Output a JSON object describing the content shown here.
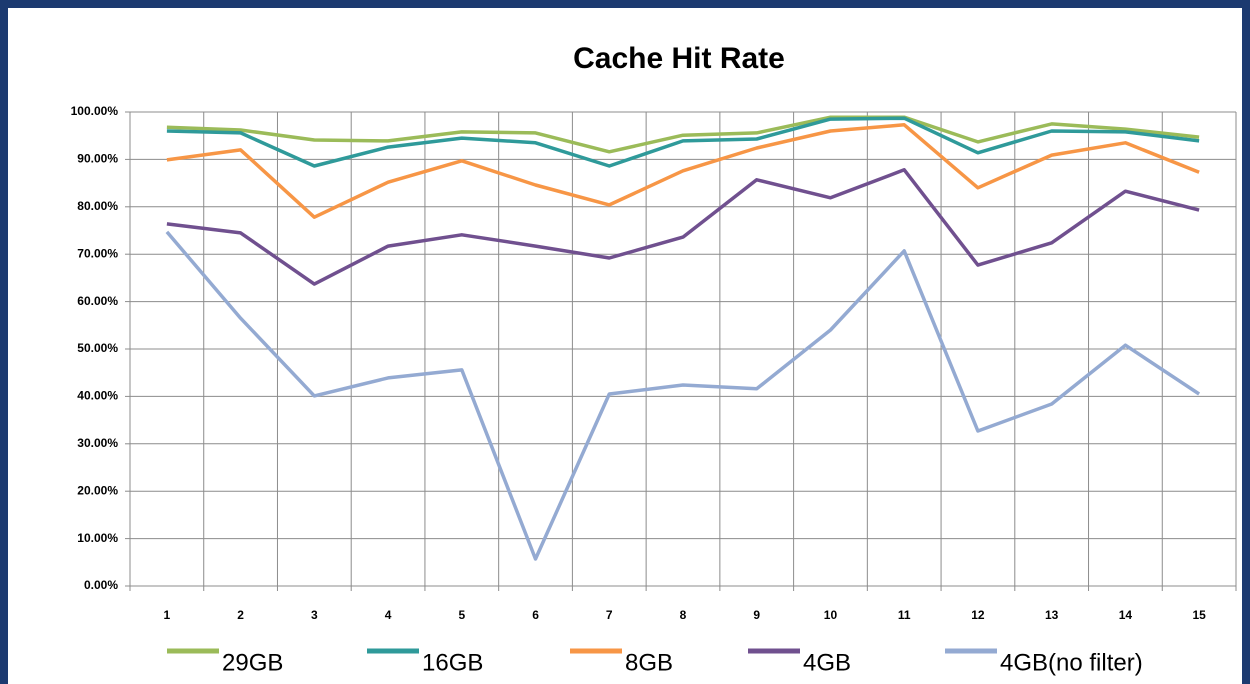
{
  "chart_data": {
    "type": "line",
    "title": "Cache Hit Rate",
    "categories": [
      1,
      2,
      3,
      4,
      5,
      6,
      7,
      8,
      9,
      10,
      11,
      12,
      13,
      14,
      15
    ],
    "series": [
      {
        "name": "29GB",
        "color": "#9bbb59",
        "values": [
          96.8,
          96.2,
          94.1,
          93.9,
          95.8,
          95.6,
          91.6,
          95.1,
          95.6,
          98.9,
          98.9,
          93.7,
          97.5,
          96.4,
          94.7
        ]
      },
      {
        "name": "16GB",
        "color": "#2f9a9a",
        "values": [
          96.0,
          95.6,
          88.6,
          92.6,
          94.5,
          93.5,
          88.6,
          93.9,
          94.3,
          98.5,
          98.7,
          91.4,
          96.0,
          95.8,
          93.9
        ]
      },
      {
        "name": "8GB",
        "color": "#f79646",
        "values": [
          89.9,
          92.0,
          77.8,
          85.2,
          89.7,
          84.6,
          80.4,
          87.6,
          92.4,
          96.0,
          97.3,
          84.0,
          90.9,
          93.5,
          87.3
        ]
      },
      {
        "name": "4GB",
        "color": "#70508f",
        "values": [
          76.4,
          74.5,
          63.7,
          71.7,
          74.1,
          71.7,
          69.2,
          73.6,
          85.7,
          81.9,
          87.8,
          67.7,
          72.4,
          83.3,
          79.3
        ]
      },
      {
        "name": "4GB(no filter)",
        "color": "#94aad2",
        "values": [
          74.7,
          56.5,
          40.1,
          43.9,
          45.6,
          5.7,
          40.5,
          42.4,
          41.6,
          54.0,
          70.7,
          32.7,
          38.4,
          50.8,
          40.5
        ]
      }
    ],
    "ylim": [
      0,
      100
    ],
    "yticks": [
      {
        "value": 0,
        "label": "0.00%"
      },
      {
        "value": 10,
        "label": "10.00%"
      },
      {
        "value": 20,
        "label": "20.00%"
      },
      {
        "value": 30,
        "label": "30.00%"
      },
      {
        "value": 40,
        "label": "40.00%"
      },
      {
        "value": 50,
        "label": "50.00%"
      },
      {
        "value": 60,
        "label": "60.00%"
      },
      {
        "value": 70,
        "label": "70.00%"
      },
      {
        "value": 80,
        "label": "80.00%"
      },
      {
        "value": 90,
        "label": "90.00%"
      },
      {
        "value": 100,
        "label": "100.00%"
      }
    ],
    "grid": true,
    "legend": "bottom"
  }
}
